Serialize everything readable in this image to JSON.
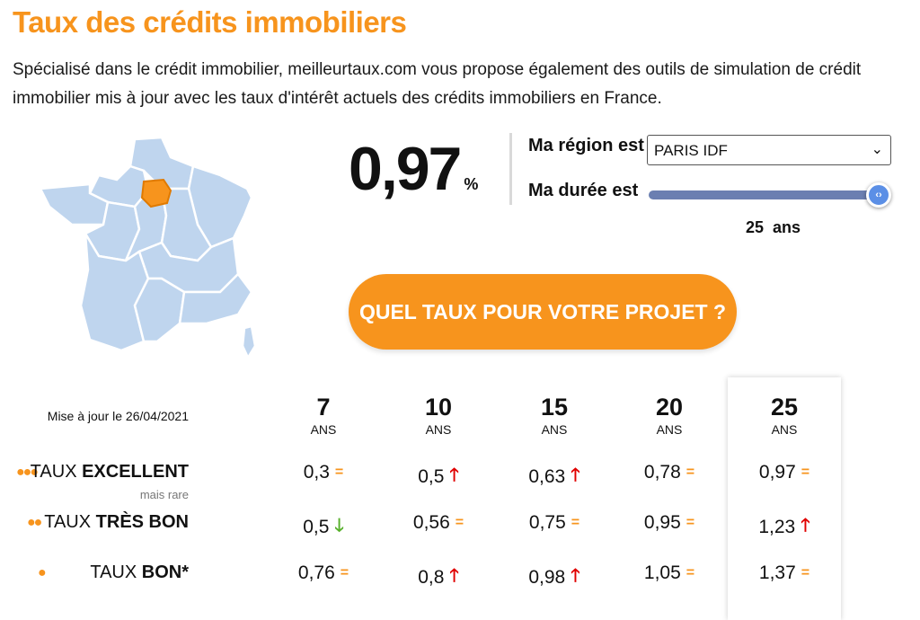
{
  "header": {
    "title": "Taux des crédits immobiliers",
    "intro": "Spécialisé dans le crédit immobilier, meilleurtaux.com vous propose également des outils de simulation de crédit immobilier mis à jour avec les taux d'intérêt actuels des crédits immobiliers en France."
  },
  "colors": {
    "accent": "#f7941d",
    "map": "#bfd5ee",
    "up": "#e00000",
    "down": "#57b02b",
    "slider": "#6b7fb1"
  },
  "simulator": {
    "rate": "0,97",
    "rate_unit": "%",
    "region_label": "Ma région est",
    "region_value": "PARIS IDF",
    "duration_label": "Ma durée est",
    "duration_value": "25",
    "duration_unit": "ans",
    "slider_level": 1.0,
    "cta_label": "QUEL TAUX POUR VOTRE PROJET ?"
  },
  "table": {
    "updated": "Mise à jour le 26/04/2021",
    "columns": [
      {
        "n": "7",
        "unit": "ANS"
      },
      {
        "n": "10",
        "unit": "ANS"
      },
      {
        "n": "15",
        "unit": "ANS"
      },
      {
        "n": "20",
        "unit": "ANS"
      },
      {
        "n": "25",
        "unit": "ANS"
      }
    ],
    "rows": [
      {
        "prefix": "TAUX",
        "label": "EXCELLENT",
        "note": "mais rare",
        "cells": [
          {
            "v": "0,3",
            "t": "eq"
          },
          {
            "v": "0,5",
            "t": "up"
          },
          {
            "v": "0,63",
            "t": "up"
          },
          {
            "v": "0,78",
            "t": "eq"
          },
          {
            "v": "0,97",
            "t": "eq"
          }
        ]
      },
      {
        "prefix": "TAUX",
        "label": "TRÈS BON",
        "cells": [
          {
            "v": "0,5",
            "t": "down"
          },
          {
            "v": "0,56",
            "t": "eq"
          },
          {
            "v": "0,75",
            "t": "eq"
          },
          {
            "v": "0,95",
            "t": "eq"
          },
          {
            "v": "1,23",
            "t": "up"
          }
        ]
      },
      {
        "prefix": "TAUX",
        "label": "BON*",
        "cells": [
          {
            "v": "0,76",
            "t": "eq"
          },
          {
            "v": "0,8",
            "t": "up"
          },
          {
            "v": "0,98",
            "t": "up"
          },
          {
            "v": "1,05",
            "t": "eq"
          },
          {
            "v": "1,37",
            "t": "eq"
          }
        ]
      }
    ],
    "trend_icons": {
      "eq": "=",
      "up": "🡑",
      "down": "🡓"
    }
  }
}
